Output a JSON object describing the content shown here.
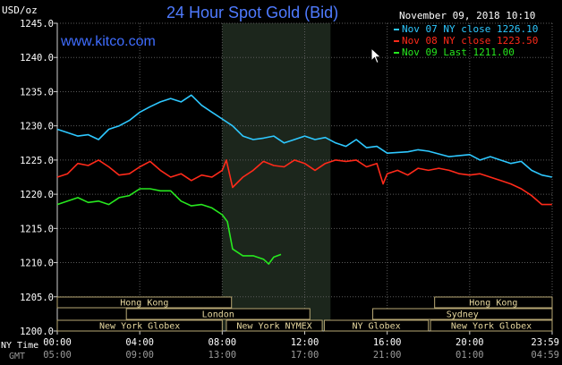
{
  "header": {
    "title": "24 Hour Spot Gold (Bid)",
    "watermark": "www.kitco.com",
    "unit_label": "USD/oz",
    "datetime": "November 09, 2018 10:10"
  },
  "colors": {
    "nov07": "#2ec8ff",
    "nov08": "#ff2a1a",
    "nov09": "#27e81f",
    "grid": "#5a5a5a",
    "text": "#ffffff",
    "title": "#4f7bff"
  },
  "axis_labels": {
    "ny_time": "NY Time",
    "gmt": "GMT"
  },
  "sessions": [
    {
      "label": "Hong Kong",
      "row": 0,
      "start": 0.0,
      "end": 8.45
    },
    {
      "label": "Hong Kong",
      "row": 0,
      "start": 18.3,
      "end": 24.0
    },
    {
      "label": "London",
      "row": 1,
      "start": 3.35,
      "end": 12.25
    },
    {
      "label": "Sydney",
      "row": 1,
      "start": 15.3,
      "end": 24.0
    },
    {
      "label": "New York Globex",
      "row": 2,
      "start": 0.0,
      "end": 8.0
    },
    {
      "label": "New York NYMEX",
      "row": 2,
      "start": 8.2,
      "end": 12.85
    },
    {
      "label": "NY Globex",
      "row": 2,
      "start": 12.95,
      "end": 18.0
    },
    {
      "label": "New York Globex",
      "row": 2,
      "start": 18.1,
      "end": 24.0
    }
  ],
  "chart_data": {
    "type": "line",
    "title": "24 Hour Spot Gold (Bid)",
    "ylabel": "USD/oz",
    "ylim": [
      1200.0,
      1245.0
    ],
    "yticks": [
      "1245.0",
      "1240.0",
      "1235.0",
      "1230.0",
      "1225.0",
      "1220.0",
      "1215.0",
      "1210.0",
      "1205.0",
      "1200.0"
    ],
    "xlim_hours": [
      0,
      24
    ],
    "xticks_ny": [
      "00:00",
      "04:00",
      "08:00",
      "12:00",
      "16:00",
      "20:00",
      "23:59"
    ],
    "xticks_gmt": [
      "05:00",
      "09:00",
      "13:00",
      "17:00",
      "21:00",
      "01:00",
      "04:59"
    ],
    "highlight_hours": [
      8.0,
      13.25
    ],
    "grid": true,
    "legend_position": "top-right",
    "series": [
      {
        "name": "Nov 07 NY close 1226.10",
        "x": [
          0,
          0.5,
          1.0,
          1.5,
          2.0,
          2.5,
          3.0,
          3.5,
          4.0,
          4.5,
          5.0,
          5.5,
          6.0,
          6.5,
          7.0,
          7.5,
          8.0,
          8.5,
          9.0,
          9.5,
          10.0,
          10.5,
          11.0,
          11.5,
          12.0,
          12.5,
          13.0,
          13.5,
          14.0,
          14.5,
          15.0,
          15.5,
          16.0,
          17.0,
          17.5,
          18.0,
          19.0,
          20.0,
          20.5,
          21.0,
          22.0,
          22.5,
          23.0,
          23.5,
          23.99
        ],
        "y": [
          1229.5,
          1229.0,
          1228.5,
          1228.7,
          1228.0,
          1229.5,
          1230.0,
          1230.8,
          1232.0,
          1232.8,
          1233.5,
          1234.0,
          1233.5,
          1234.5,
          1233.0,
          1232.0,
          1231.0,
          1230.0,
          1228.5,
          1228.0,
          1228.2,
          1228.5,
          1227.5,
          1228.0,
          1228.5,
          1228.0,
          1228.3,
          1227.5,
          1227.0,
          1228.0,
          1226.8,
          1227.0,
          1226.0,
          1226.2,
          1226.5,
          1226.3,
          1225.5,
          1225.8,
          1225.0,
          1225.5,
          1224.5,
          1224.8,
          1223.5,
          1222.8,
          1222.5
        ]
      },
      {
        "name": "Nov 08 NY close 1223.50",
        "x": [
          0,
          0.5,
          1.0,
          1.5,
          2.0,
          2.5,
          3.0,
          3.5,
          4.0,
          4.5,
          5.0,
          5.5,
          6.0,
          6.5,
          7.0,
          7.5,
          8.0,
          8.2,
          8.5,
          9.0,
          9.5,
          10.0,
          10.5,
          11.0,
          11.5,
          12.0,
          12.5,
          13.0,
          13.5,
          14.0,
          14.5,
          15.0,
          15.5,
          15.8,
          16.0,
          16.5,
          17.0,
          17.5,
          18.0,
          18.5,
          19.0,
          19.5,
          20.0,
          20.5,
          21.0,
          21.5,
          22.0,
          22.5,
          23.0,
          23.5,
          23.99
        ],
        "y": [
          1222.5,
          1223.0,
          1224.5,
          1224.2,
          1225.0,
          1224.0,
          1222.8,
          1223.0,
          1224.0,
          1224.8,
          1223.5,
          1222.5,
          1223.0,
          1222.0,
          1222.8,
          1222.5,
          1223.5,
          1225.0,
          1221.0,
          1222.5,
          1223.5,
          1224.8,
          1224.2,
          1224.0,
          1225.0,
          1224.5,
          1223.5,
          1224.5,
          1225.0,
          1224.8,
          1225.0,
          1224.0,
          1224.5,
          1221.5,
          1223.0,
          1223.5,
          1222.8,
          1223.8,
          1223.5,
          1223.8,
          1223.5,
          1223.0,
          1222.8,
          1223.0,
          1222.5,
          1222.0,
          1221.5,
          1220.8,
          1219.8,
          1218.5,
          1218.5
        ]
      },
      {
        "name": "Nov 09 Last 1211.00",
        "x": [
          0,
          0.5,
          1.0,
          1.5,
          2.0,
          2.5,
          3.0,
          3.5,
          4.0,
          4.5,
          5.0,
          5.5,
          6.0,
          6.5,
          7.0,
          7.5,
          8.0,
          8.25,
          8.5,
          9.0,
          9.5,
          10.0,
          10.25,
          10.5,
          10.85
        ],
        "y": [
          1218.5,
          1219.0,
          1219.5,
          1218.8,
          1219.0,
          1218.5,
          1219.5,
          1219.8,
          1220.8,
          1220.8,
          1220.5,
          1220.5,
          1219.0,
          1218.3,
          1218.5,
          1218.0,
          1217.0,
          1216.0,
          1212.0,
          1211.0,
          1211.0,
          1210.5,
          1209.8,
          1210.8,
          1211.2
        ]
      }
    ]
  }
}
